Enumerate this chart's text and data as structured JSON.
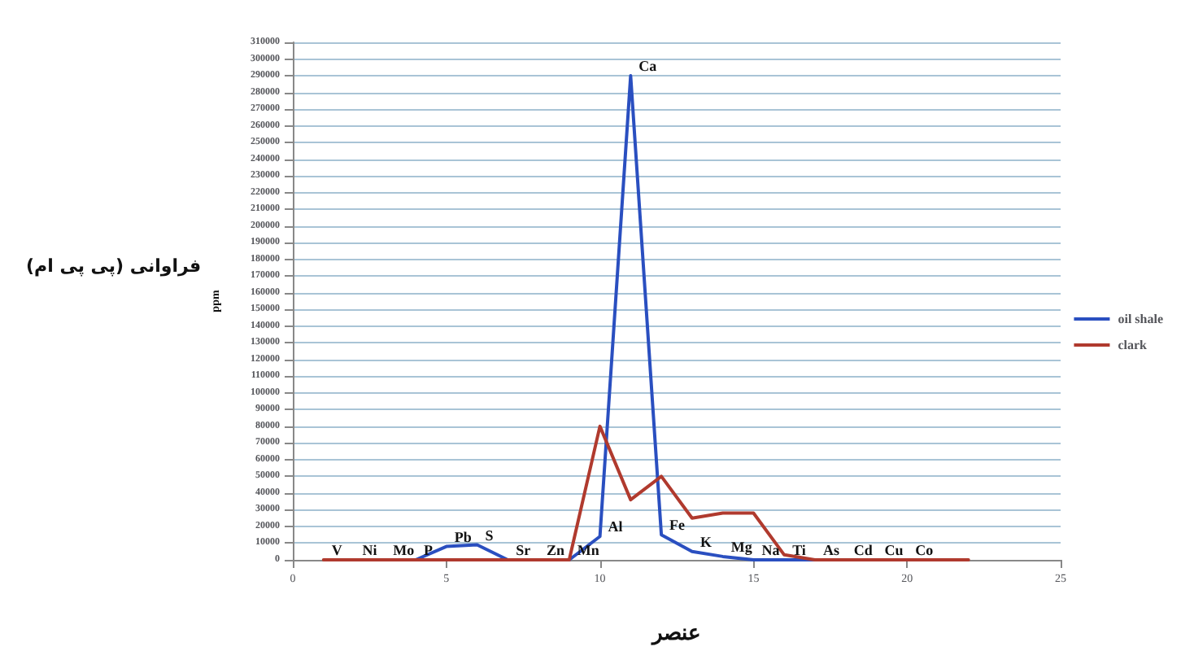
{
  "chart_data": {
    "type": "line",
    "xlabel": "عنصر",
    "ylabel": "ppm",
    "xlim": [
      0,
      25
    ],
    "xticks": [
      0,
      5,
      10,
      15,
      20,
      25
    ],
    "ylim": [
      0,
      310000
    ],
    "yticks": [
      0,
      10000,
      20000,
      30000,
      40000,
      50000,
      60000,
      70000,
      80000,
      90000,
      100000,
      110000,
      120000,
      130000,
      140000,
      150000,
      160000,
      170000,
      180000,
      190000,
      200000,
      210000,
      220000,
      230000,
      240000,
      250000,
      260000,
      270000,
      280000,
      290000,
      300000,
      310000
    ],
    "grid": "y",
    "legend": "right",
    "marker": "none",
    "line_style": "solid",
    "series": [
      {
        "name": "oil shale",
        "color": "#2a4fc0",
        "x": [
          3,
          4,
          5,
          6,
          7,
          8,
          9,
          10,
          11,
          12,
          13,
          14,
          15,
          16,
          17,
          18
        ],
        "values": [
          0,
          0,
          8000,
          9000,
          0,
          0,
          0,
          14000,
          290000,
          15000,
          5000,
          2000,
          0,
          0,
          0,
          0
        ]
      },
      {
        "name": "clark",
        "color": "#b03a2e",
        "x": [
          1,
          2,
          3,
          4,
          5,
          6,
          7,
          8,
          9,
          10,
          11,
          12,
          13,
          14,
          15,
          16,
          17,
          18,
          19,
          20,
          21,
          22
        ],
        "values": [
          0,
          0,
          0,
          0,
          0,
          0,
          0,
          0,
          0,
          80000,
          36000,
          50000,
          25000,
          28000,
          28000,
          3000,
          0,
          0,
          0,
          0,
          0,
          0
        ]
      }
    ],
    "annotations": [
      "فراوانی (پی پی ام)",
      {
        "text": "V",
        "x": 1,
        "y": 0
      },
      {
        "text": "Ni",
        "x": 2,
        "y": 0
      },
      {
        "text": "Mo",
        "x": 3,
        "y": 0
      },
      {
        "text": "P",
        "x": 4,
        "y": 0
      },
      {
        "text": "Pb",
        "x": 5,
        "y": 8000
      },
      {
        "text": "S",
        "x": 6,
        "y": 9000
      },
      {
        "text": "Sr",
        "x": 7,
        "y": 0
      },
      {
        "text": "Zn",
        "x": 8,
        "y": 0
      },
      {
        "text": "Mn",
        "x": 9,
        "y": 0
      },
      {
        "text": "Al",
        "x": 10,
        "y": 14000
      },
      {
        "text": "Ca",
        "x": 11,
        "y": 290000
      },
      {
        "text": "Fe",
        "x": 12,
        "y": 15000
      },
      {
        "text": "K",
        "x": 13,
        "y": 5000
      },
      {
        "text": "Mg",
        "x": 14,
        "y": 2000
      },
      {
        "text": "Na",
        "x": 15,
        "y": 0
      },
      {
        "text": "Ti",
        "x": 16,
        "y": 0
      },
      {
        "text": "As",
        "x": 17,
        "y": 0
      },
      {
        "text": "Cd",
        "x": 18,
        "y": 0
      },
      {
        "text": "Cu",
        "x": 19,
        "y": 0
      },
      {
        "text": "Co",
        "x": 20,
        "y": 0
      }
    ]
  }
}
